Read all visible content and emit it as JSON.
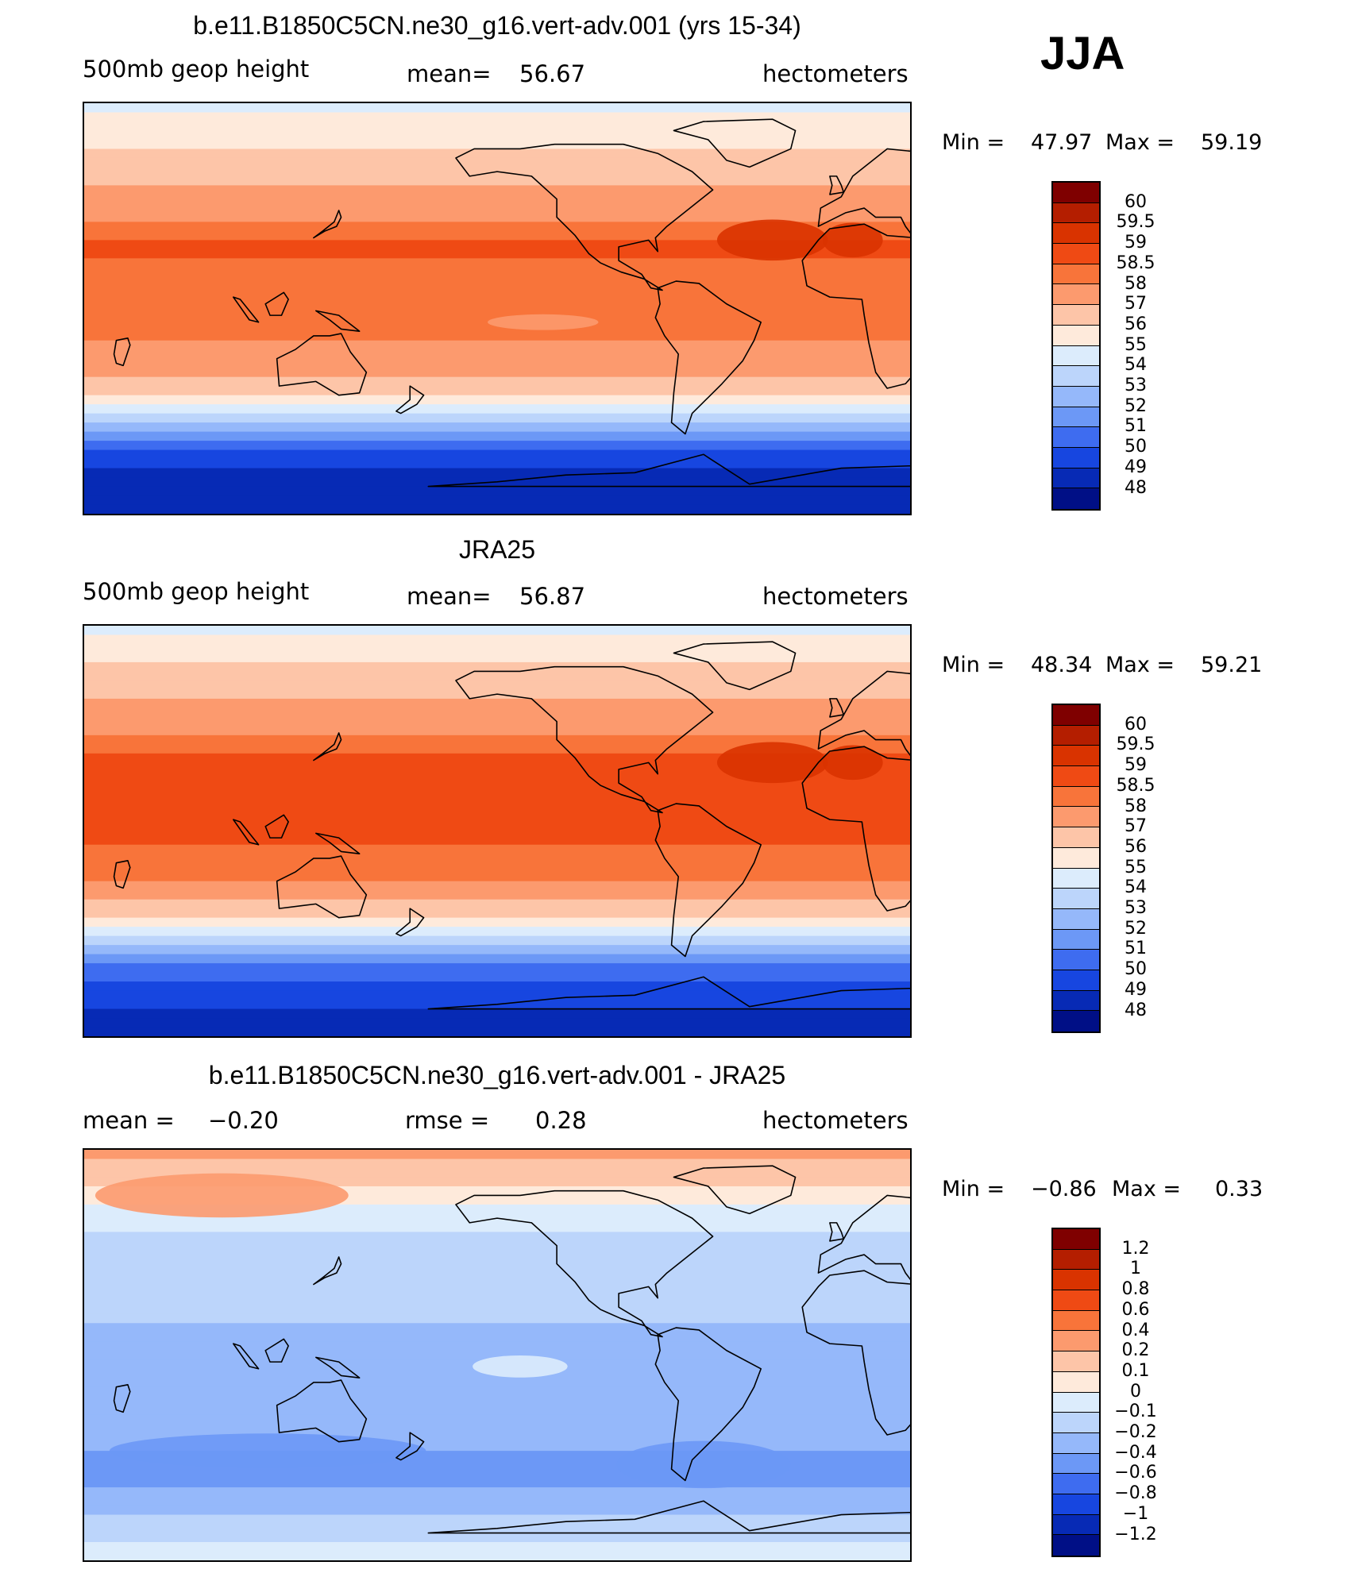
{
  "season": "JJA",
  "panels": [
    {
      "title": "b.e11.B1850C5CN.ne30_g16.vert-adv.001 (yrs 15-34)",
      "left_label": "500mb geop height",
      "mean_label": "mean=",
      "mean_value": "56.67",
      "units": "hectometers",
      "min_label": "Min =",
      "min_value": "47.97",
      "max_label": "Max =",
      "max_value": "59.19",
      "colorbar_labels": [
        "60",
        "59.5",
        "59",
        "58.5",
        "58",
        "57",
        "56",
        "55",
        "54",
        "53",
        "52",
        "51",
        "50",
        "49",
        "48"
      ]
    },
    {
      "title": "JRA25",
      "left_label": "500mb geop height",
      "mean_label": "mean=",
      "mean_value": "56.87",
      "units": "hectometers",
      "min_label": "Min =",
      "min_value": "48.34",
      "max_label": "Max =",
      "max_value": "59.21",
      "colorbar_labels": [
        "60",
        "59.5",
        "59",
        "58.5",
        "58",
        "57",
        "56",
        "55",
        "54",
        "53",
        "52",
        "51",
        "50",
        "49",
        "48"
      ]
    },
    {
      "title": "b.e11.B1850C5CN.ne30_g16.vert-adv.001 - JRA25",
      "left_label": "mean =",
      "left_value": "−0.20",
      "rmse_label": "rmse =",
      "rmse_value": "0.28",
      "units": "hectometers",
      "min_label": "Min =",
      "min_value": "−0.86",
      "max_label": "Max =",
      "max_value": "0.33",
      "colorbar_labels": [
        "1.2",
        "1",
        "0.8",
        "0.6",
        "0.4",
        "0.2",
        "0.1",
        "0",
        "−0.1",
        "−0.2",
        "−0.4",
        "−0.6",
        "−0.8",
        "−1",
        "−1.2"
      ]
    }
  ],
  "colors": {
    "c16": [
      "#7f0000",
      "#b41e00",
      "#d93300",
      "#ef4a14",
      "#f8743a",
      "#fc9a6e",
      "#fdc5a8",
      "#feeadb",
      "#dcecfc",
      "#bcd5fb",
      "#95b8fa",
      "#6c98f6",
      "#3e6cf0",
      "#1746e0",
      "#072ab5",
      "#000f86"
    ]
  },
  "chart_data": [
    {
      "type": "heatmap",
      "title": "b.e11.B1850C5CN.ne30_g16.vert-adv.001 (yrs 15-34)",
      "variable": "500mb geop height",
      "units": "hectometers",
      "mean": 56.67,
      "min": 47.97,
      "max": 59.19,
      "contour_levels": [
        48,
        49,
        50,
        51,
        52,
        53,
        54,
        55,
        56,
        57,
        58,
        58.5,
        59,
        59.5,
        60
      ],
      "lat_profile": [
        [
          90,
          54.6
        ],
        [
          75,
          55.7
        ],
        [
          60,
          56.6
        ],
        [
          45,
          57.6
        ],
        [
          30,
          58.6
        ],
        [
          15,
          58.4
        ],
        [
          0,
          58.2
        ],
        [
          -15,
          58.0
        ],
        [
          -30,
          57.1
        ],
        [
          -40,
          55.5
        ],
        [
          -50,
          53.0
        ],
        [
          -60,
          50.5
        ],
        [
          -70,
          49.0
        ],
        [
          -90,
          48.3
        ]
      ]
    },
    {
      "type": "heatmap",
      "title": "JRA25",
      "variable": "500mb geop height",
      "units": "hectometers",
      "mean": 56.87,
      "min": 48.34,
      "max": 59.21,
      "contour_levels": [
        48,
        49,
        50,
        51,
        52,
        53,
        54,
        55,
        56,
        57,
        58,
        58.5,
        59,
        59.5,
        60
      ],
      "lat_profile": [
        [
          90,
          54.7
        ],
        [
          75,
          55.8
        ],
        [
          60,
          56.8
        ],
        [
          45,
          57.8
        ],
        [
          30,
          58.8
        ],
        [
          15,
          58.7
        ],
        [
          0,
          58.6
        ],
        [
          -15,
          58.4
        ],
        [
          -30,
          57.3
        ],
        [
          -40,
          55.6
        ],
        [
          -50,
          53.1
        ],
        [
          -60,
          50.6
        ],
        [
          -70,
          49.2
        ],
        [
          -90,
          48.6
        ]
      ]
    },
    {
      "type": "heatmap",
      "title": "b.e11.B1850C5CN.ne30_g16.vert-adv.001 - JRA25",
      "variable": "500mb geop height difference",
      "units": "hectometers",
      "mean": -0.2,
      "rmse": 0.28,
      "min": -0.86,
      "max": 0.33,
      "contour_levels": [
        -1.2,
        -1,
        -0.8,
        -0.6,
        -0.4,
        -0.2,
        -0.1,
        0,
        0.1,
        0.2,
        0.4,
        0.6,
        0.8,
        1,
        1.2
      ],
      "lat_profile": [
        [
          90,
          0.22
        ],
        [
          75,
          0.12
        ],
        [
          60,
          -0.05
        ],
        [
          45,
          -0.15
        ],
        [
          30,
          -0.1
        ],
        [
          15,
          -0.2
        ],
        [
          0,
          -0.22
        ],
        [
          -15,
          -0.25
        ],
        [
          -30,
          -0.3
        ],
        [
          -45,
          -0.45
        ],
        [
          -55,
          -0.5
        ],
        [
          -65,
          -0.3
        ],
        [
          -75,
          -0.15
        ],
        [
          -90,
          -0.05
        ]
      ]
    }
  ]
}
